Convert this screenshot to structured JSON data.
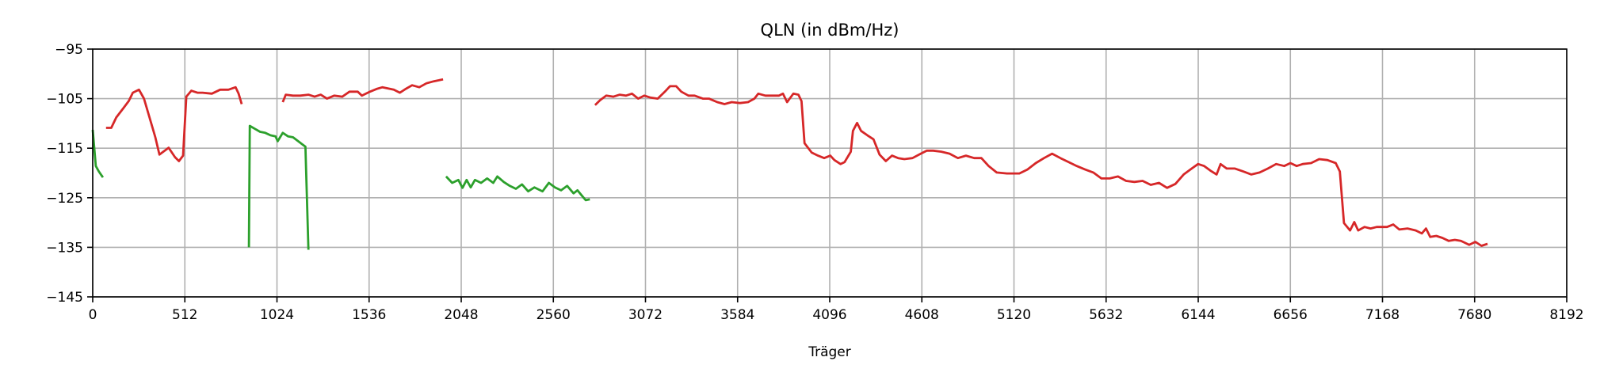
{
  "chart_data": {
    "type": "line",
    "title": "QLN (in dBm/Hz)",
    "xlabel": "Träger",
    "ylabel": "",
    "xlim": [
      0,
      8192
    ],
    "ylim": [
      -145,
      -95
    ],
    "xticks": [
      0,
      512,
      1024,
      1536,
      2048,
      2560,
      3072,
      3584,
      4096,
      4608,
      5120,
      5632,
      6144,
      6656,
      7168,
      7680,
      8192
    ],
    "yticks": [
      -95,
      -105,
      -115,
      -125,
      -135,
      -145
    ],
    "ytick_labels": [
      "−95",
      "−105",
      "−115",
      "−125",
      "−135",
      "−145"
    ],
    "grid": true,
    "series": [
      {
        "color": "#d62728",
        "segments": [
          [
            [
              74,
              -110.9
            ],
            [
              103,
              -110.9
            ],
            [
              131,
              -108.8
            ],
            [
              171,
              -106.9
            ],
            [
              200,
              -105.5
            ],
            [
              223,
              -103.8
            ],
            [
              257,
              -103.2
            ],
            [
              285,
              -105
            ],
            [
              314,
              -108.6
            ],
            [
              348,
              -112.8
            ],
            [
              371,
              -116.3
            ],
            [
              422,
              -114.9
            ],
            [
              457,
              -116.8
            ],
            [
              479,
              -117.6
            ],
            [
              502,
              -116.5
            ],
            [
              520,
              -104.6
            ],
            [
              548,
              -103.4
            ],
            [
              582,
              -103.8
            ],
            [
              611,
              -103.8
            ],
            [
              662,
              -104
            ],
            [
              708,
              -103.2
            ],
            [
              754,
              -103.2
            ],
            [
              794,
              -102.7
            ],
            [
              811,
              -104
            ],
            [
              828,
              -106.1
            ]
          ],
          [
            [
              1056,
              -105.7
            ],
            [
              1073,
              -104.2
            ],
            [
              1113,
              -104.4
            ],
            [
              1153,
              -104.4
            ],
            [
              1199,
              -104.2
            ],
            [
              1233,
              -104.6
            ],
            [
              1267,
              -104.2
            ],
            [
              1302,
              -105
            ],
            [
              1342,
              -104.4
            ],
            [
              1387,
              -104.6
            ],
            [
              1427,
              -103.6
            ],
            [
              1473,
              -103.6
            ],
            [
              1496,
              -104.4
            ],
            [
              1541,
              -103.6
            ],
            [
              1581,
              -103
            ],
            [
              1610,
              -102.7
            ],
            [
              1673,
              -103.2
            ],
            [
              1707,
              -103.8
            ],
            [
              1741,
              -103
            ],
            [
              1775,
              -102.3
            ],
            [
              1815,
              -102.7
            ],
            [
              1855,
              -101.9
            ],
            [
              1895,
              -101.5
            ],
            [
              1924,
              -101.3
            ],
            [
              1947,
              -101.1
            ]
          ],
          [
            [
              2792,
              -106.3
            ],
            [
              2820,
              -105.3
            ],
            [
              2854,
              -104.4
            ],
            [
              2894,
              -104.6
            ],
            [
              2929,
              -104.2
            ],
            [
              2963,
              -104.4
            ],
            [
              2997,
              -104
            ],
            [
              3031,
              -105
            ],
            [
              3066,
              -104.4
            ],
            [
              3100,
              -104.8
            ],
            [
              3140,
              -105
            ],
            [
              3180,
              -103.6
            ],
            [
              3208,
              -102.5
            ],
            [
              3243,
              -102.5
            ],
            [
              3271,
              -103.6
            ],
            [
              3311,
              -104.4
            ],
            [
              3345,
              -104.4
            ],
            [
              3391,
              -105
            ],
            [
              3425,
              -105
            ],
            [
              3471,
              -105.7
            ],
            [
              3511,
              -106.1
            ],
            [
              3551,
              -105.7
            ],
            [
              3597,
              -105.9
            ],
            [
              3642,
              -105.7
            ],
            [
              3677,
              -105
            ],
            [
              3699,
              -104
            ],
            [
              3739,
              -104.4
            ],
            [
              3779,
              -104.4
            ],
            [
              3814,
              -104.4
            ],
            [
              3836,
              -104
            ],
            [
              3859,
              -105.7
            ],
            [
              3894,
              -104
            ],
            [
              3922,
              -104.2
            ],
            [
              3939,
              -105.5
            ],
            [
              3956,
              -114
            ],
            [
              3996,
              -115.9
            ],
            [
              4031,
              -116.5
            ],
            [
              4065,
              -117
            ],
            [
              4099,
              -116.5
            ],
            [
              4122,
              -117.4
            ],
            [
              4156,
              -118.2
            ],
            [
              4179,
              -117.8
            ],
            [
              4213,
              -115.7
            ],
            [
              4225,
              -111.5
            ],
            [
              4248,
              -109.9
            ],
            [
              4270,
              -111.5
            ],
            [
              4305,
              -112.4
            ],
            [
              4339,
              -113.2
            ],
            [
              4373,
              -116.3
            ],
            [
              4408,
              -117.6
            ],
            [
              4442,
              -116.5
            ],
            [
              4476,
              -117
            ],
            [
              4511,
              -117.2
            ],
            [
              4556,
              -117
            ],
            [
              4602,
              -116.1
            ],
            [
              4636,
              -115.5
            ],
            [
              4671,
              -115.5
            ],
            [
              4716,
              -115.7
            ],
            [
              4762,
              -116.1
            ],
            [
              4808,
              -117
            ],
            [
              4853,
              -116.5
            ],
            [
              4899,
              -117
            ],
            [
              4939,
              -117
            ],
            [
              4979,
              -118.6
            ],
            [
              5024,
              -119.9
            ],
            [
              5081,
              -120.1
            ],
            [
              5150,
              -120.1
            ],
            [
              5195,
              -119.3
            ],
            [
              5241,
              -118
            ],
            [
              5287,
              -117
            ],
            [
              5332,
              -116.1
            ],
            [
              5378,
              -117
            ],
            [
              5424,
              -117.8
            ],
            [
              5469,
              -118.6
            ],
            [
              5515,
              -119.3
            ],
            [
              5561,
              -119.9
            ],
            [
              5606,
              -121.1
            ],
            [
              5652,
              -121.1
            ],
            [
              5698,
              -120.7
            ],
            [
              5743,
              -121.6
            ],
            [
              5789,
              -121.8
            ],
            [
              5835,
              -121.6
            ],
            [
              5880,
              -122.4
            ],
            [
              5926,
              -122
            ],
            [
              5971,
              -123
            ],
            [
              6017,
              -122.2
            ],
            [
              6063,
              -120.3
            ],
            [
              6108,
              -119.1
            ],
            [
              6143,
              -118.2
            ],
            [
              6177,
              -118.6
            ],
            [
              6211,
              -119.5
            ],
            [
              6246,
              -120.3
            ],
            [
              6268,
              -118.2
            ],
            [
              6302,
              -119.1
            ],
            [
              6348,
              -119.1
            ],
            [
              6394,
              -119.7
            ],
            [
              6439,
              -120.3
            ],
            [
              6485,
              -119.9
            ],
            [
              6531,
              -119.1
            ],
            [
              6577,
              -118.2
            ],
            [
              6622,
              -118.6
            ],
            [
              6656,
              -118
            ],
            [
              6691,
              -118.6
            ],
            [
              6725,
              -118.2
            ],
            [
              6771,
              -118
            ],
            [
              6816,
              -117.2
            ],
            [
              6862,
              -117.4
            ],
            [
              6908,
              -118
            ],
            [
              6931,
              -119.7
            ],
            [
              6954,
              -130.1
            ],
            [
              6988,
              -131.6
            ],
            [
              7011,
              -129.9
            ],
            [
              7033,
              -131.6
            ],
            [
              7068,
              -130.9
            ],
            [
              7102,
              -131.2
            ],
            [
              7136,
              -130.9
            ],
            [
              7193,
              -130.9
            ],
            [
              7228,
              -130.4
            ],
            [
              7262,
              -131.4
            ],
            [
              7307,
              -131.2
            ],
            [
              7353,
              -131.6
            ],
            [
              7387,
              -132.2
            ],
            [
              7410,
              -131.2
            ],
            [
              7433,
              -132.9
            ],
            [
              7467,
              -132.7
            ],
            [
              7501,
              -133.1
            ],
            [
              7536,
              -133.7
            ],
            [
              7570,
              -133.5
            ],
            [
              7604,
              -133.7
            ],
            [
              7650,
              -134.5
            ],
            [
              7684,
              -133.9
            ],
            [
              7718,
              -134.7
            ],
            [
              7752,
              -134.3
            ]
          ]
        ]
      },
      {
        "color": "#2ca02c",
        "segments": [
          [
            [
              0,
              -111.3
            ],
            [
              17,
              -118.6
            ],
            [
              34,
              -119.7
            ],
            [
              57,
              -120.9
            ]
          ],
          [
            [
              868,
              -135
            ],
            [
              873,
              -110.5
            ],
            [
              902,
              -111.1
            ],
            [
              930,
              -111.7
            ],
            [
              959,
              -111.9
            ],
            [
              988,
              -112.4
            ],
            [
              1016,
              -112.6
            ],
            [
              1028,
              -113.6
            ],
            [
              1056,
              -111.9
            ],
            [
              1085,
              -112.6
            ],
            [
              1113,
              -112.8
            ],
            [
              1142,
              -113.6
            ],
            [
              1182,
              -114.7
            ],
            [
              1199,
              -135.5
            ]
          ],
          [
            [
              1964,
              -120.7
            ],
            [
              1998,
              -122
            ],
            [
              2032,
              -121.4
            ],
            [
              2055,
              -123
            ],
            [
              2078,
              -121.4
            ],
            [
              2101,
              -122.9
            ],
            [
              2124,
              -121.4
            ],
            [
              2158,
              -122
            ],
            [
              2192,
              -121.1
            ],
            [
              2226,
              -122
            ],
            [
              2249,
              -120.7
            ],
            [
              2284,
              -121.8
            ],
            [
              2318,
              -122.6
            ],
            [
              2352,
              -123.2
            ],
            [
              2386,
              -122.3
            ],
            [
              2420,
              -123.7
            ],
            [
              2455,
              -122.9
            ],
            [
              2500,
              -123.7
            ],
            [
              2535,
              -122
            ],
            [
              2569,
              -122.9
            ],
            [
              2603,
              -123.5
            ],
            [
              2637,
              -122.6
            ],
            [
              2672,
              -124.1
            ],
            [
              2694,
              -123.5
            ],
            [
              2717,
              -124.5
            ],
            [
              2740,
              -125.5
            ],
            [
              2763,
              -125.3
            ]
          ]
        ]
      }
    ]
  }
}
